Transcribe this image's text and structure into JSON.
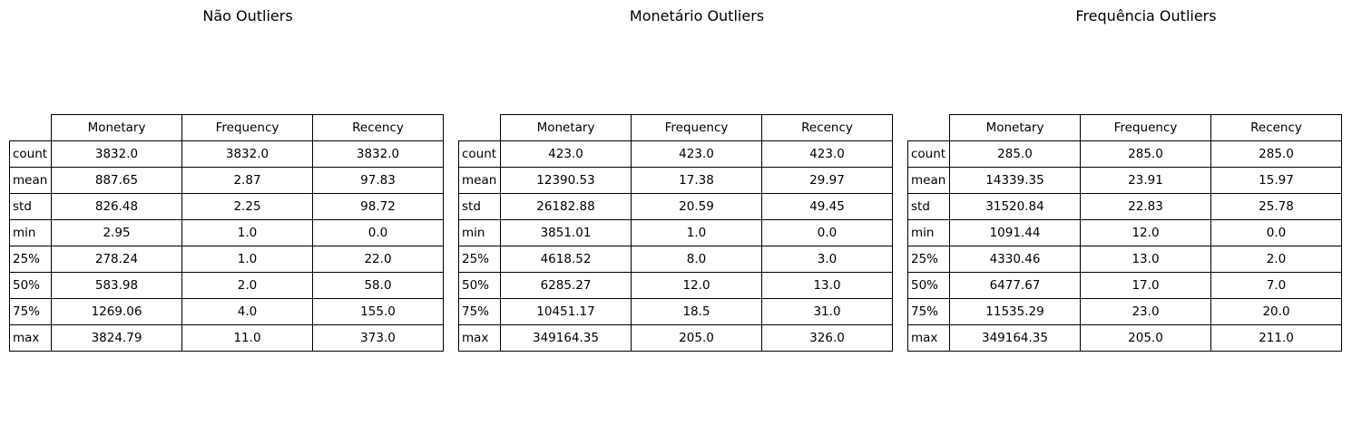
{
  "chart_data": [
    {
      "type": "table",
      "title": "Não Outliers",
      "columns": [
        "Monetary",
        "Frequency",
        "Recency"
      ],
      "rows": [
        {
          "label": "count",
          "values": [
            "3832.0",
            "3832.0",
            "3832.0"
          ]
        },
        {
          "label": "mean",
          "values": [
            "887.65",
            "2.87",
            "97.83"
          ]
        },
        {
          "label": "std",
          "values": [
            "826.48",
            "2.25",
            "98.72"
          ]
        },
        {
          "label": "min",
          "values": [
            "2.95",
            "1.0",
            "0.0"
          ]
        },
        {
          "label": "25%",
          "values": [
            "278.24",
            "1.0",
            "22.0"
          ]
        },
        {
          "label": "50%",
          "values": [
            "583.98",
            "2.0",
            "58.0"
          ]
        },
        {
          "label": "75%",
          "values": [
            "1269.06",
            "4.0",
            "155.0"
          ]
        },
        {
          "label": "max",
          "values": [
            "3824.79",
            "11.0",
            "373.0"
          ]
        }
      ]
    },
    {
      "type": "table",
      "title": "Monetário Outliers",
      "columns": [
        "Monetary",
        "Frequency",
        "Recency"
      ],
      "rows": [
        {
          "label": "count",
          "values": [
            "423.0",
            "423.0",
            "423.0"
          ]
        },
        {
          "label": "mean",
          "values": [
            "12390.53",
            "17.38",
            "29.97"
          ]
        },
        {
          "label": "std",
          "values": [
            "26182.88",
            "20.59",
            "49.45"
          ]
        },
        {
          "label": "min",
          "values": [
            "3851.01",
            "1.0",
            "0.0"
          ]
        },
        {
          "label": "25%",
          "values": [
            "4618.52",
            "8.0",
            "3.0"
          ]
        },
        {
          "label": "50%",
          "values": [
            "6285.27",
            "12.0",
            "13.0"
          ]
        },
        {
          "label": "75%",
          "values": [
            "10451.17",
            "18.5",
            "31.0"
          ]
        },
        {
          "label": "max",
          "values": [
            "349164.35",
            "205.0",
            "326.0"
          ]
        }
      ]
    },
    {
      "type": "table",
      "title": "Frequência Outliers",
      "columns": [
        "Monetary",
        "Frequency",
        "Recency"
      ],
      "rows": [
        {
          "label": "count",
          "values": [
            "285.0",
            "285.0",
            "285.0"
          ]
        },
        {
          "label": "mean",
          "values": [
            "14339.35",
            "23.91",
            "15.97"
          ]
        },
        {
          "label": "std",
          "values": [
            "31520.84",
            "22.83",
            "25.78"
          ]
        },
        {
          "label": "min",
          "values": [
            "1091.44",
            "12.0",
            "0.0"
          ]
        },
        {
          "label": "25%",
          "values": [
            "4330.46",
            "13.0",
            "2.0"
          ]
        },
        {
          "label": "50%",
          "values": [
            "6477.67",
            "17.0",
            "7.0"
          ]
        },
        {
          "label": "75%",
          "values": [
            "11535.29",
            "23.0",
            "20.0"
          ]
        },
        {
          "label": "max",
          "values": [
            "349164.35",
            "205.0",
            "211.0"
          ]
        }
      ]
    }
  ]
}
